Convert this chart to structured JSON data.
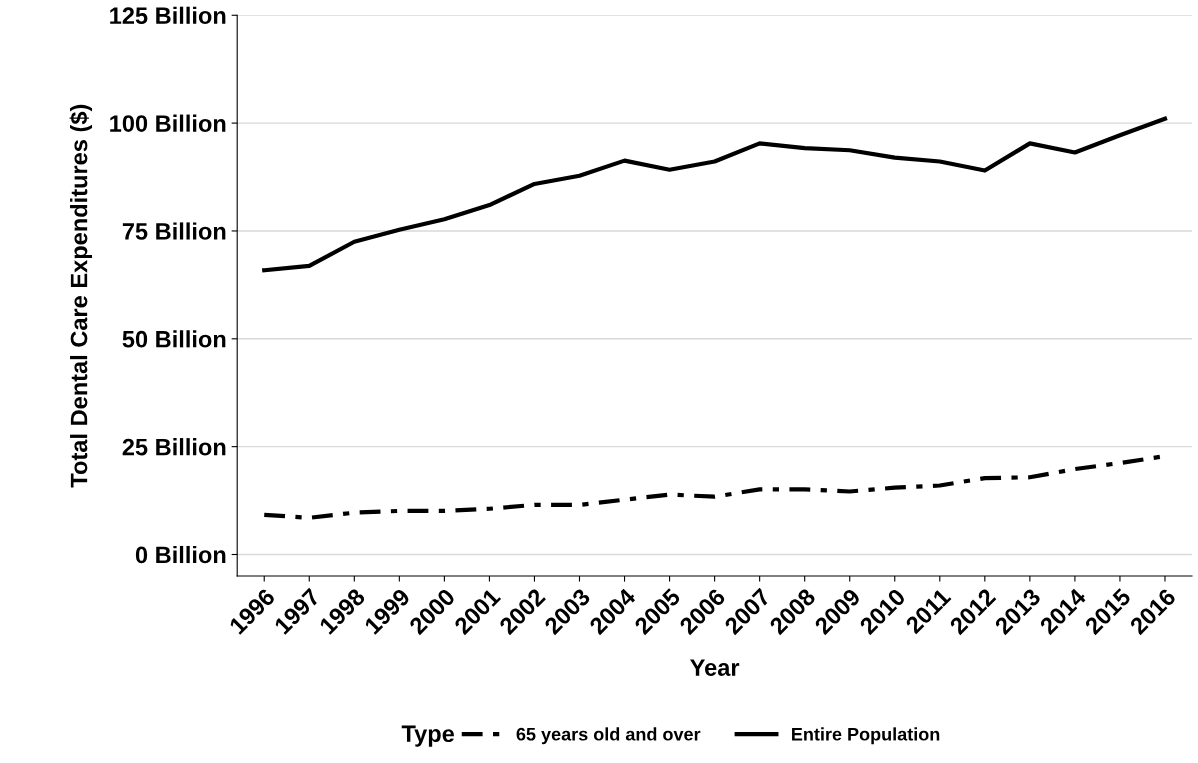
{
  "chart_data": {
    "type": "line",
    "xlabel": "Year",
    "ylabel": "Total Dental Care Expenditures ($)",
    "legend_title": "Type",
    "categories": [
      "1996",
      "1997",
      "1998",
      "1999",
      "2000",
      "2001",
      "2002",
      "2003",
      "2004",
      "2005",
      "2006",
      "2007",
      "2008",
      "2009",
      "2010",
      "2011",
      "2012",
      "2013",
      "2014",
      "2015",
      "2016"
    ],
    "series": [
      {
        "name": "65 years old and over",
        "color": "#000000",
        "line_style": "dashed",
        "values": [
          9.2,
          8.5,
          9.7,
          10.1,
          10.1,
          10.6,
          11.5,
          11.5,
          12.7,
          13.9,
          13.4,
          15.1,
          15.1,
          14.6,
          15.5,
          16.0,
          17.7,
          17.9,
          19.8,
          21.2,
          22.8
        ]
      },
      {
        "name": "Entire Population",
        "color": "#000000",
        "line_style": "solid",
        "values": [
          65.9,
          66.9,
          72.5,
          75.3,
          77.7,
          81.0,
          85.9,
          87.8,
          91.3,
          89.2,
          91.1,
          95.3,
          94.2,
          93.7,
          92.0,
          91.1,
          89.0,
          95.3,
          93.2,
          97.2,
          101.0
        ]
      }
    ],
    "ylim": [
      -5,
      125
    ],
    "yticks": [
      {
        "value": 0,
        "label": "0 Billion"
      },
      {
        "value": 25,
        "label": "25 Billion"
      },
      {
        "value": 50,
        "label": "50 Billion"
      },
      {
        "value": 75,
        "label": "75 Billion"
      },
      {
        "value": 100,
        "label": "100 Billion"
      },
      {
        "value": 125,
        "label": "125 Billion"
      }
    ],
    "grid": "y",
    "legend": "bottom",
    "marker": "none"
  }
}
